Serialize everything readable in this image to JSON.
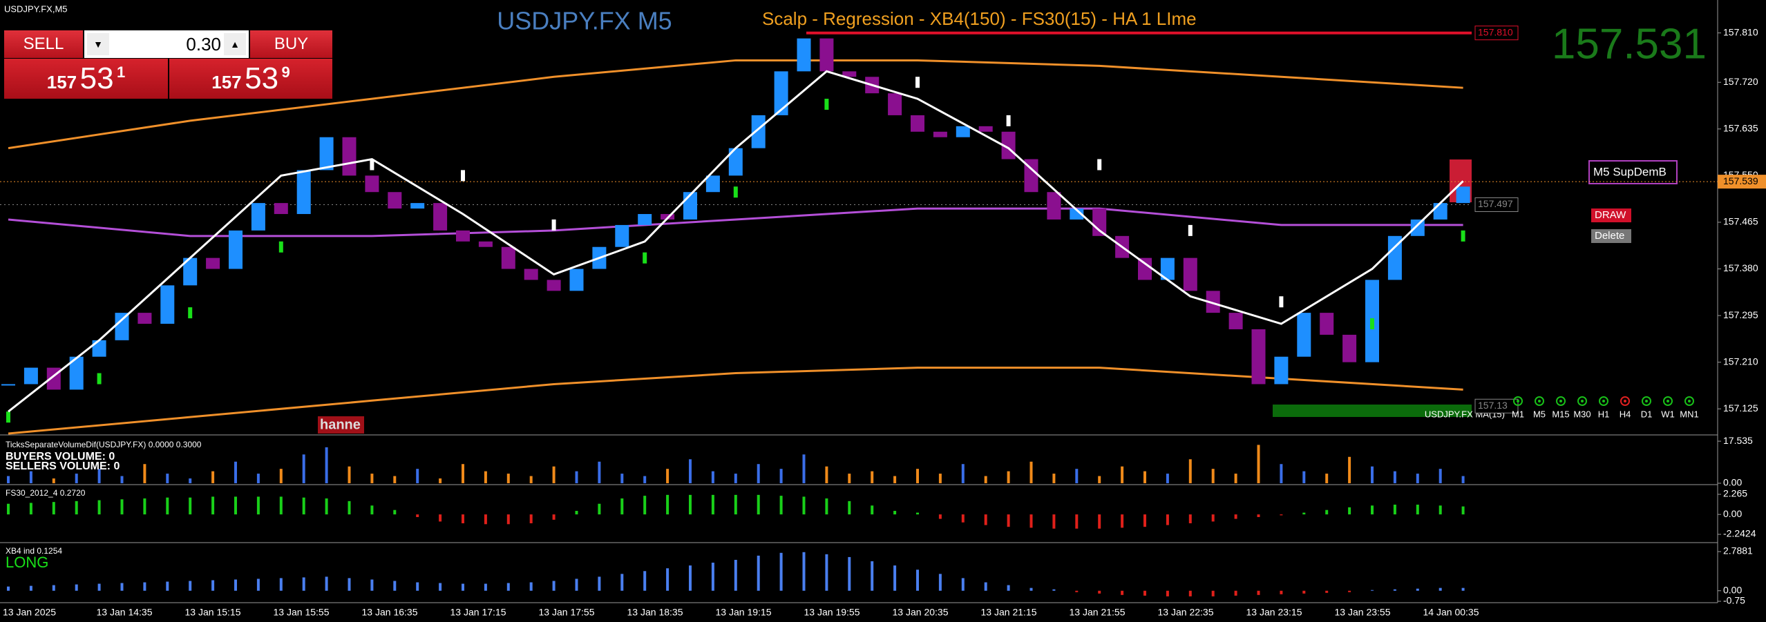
{
  "window": {
    "symbol": "USDJPY.FX,M5"
  },
  "trade_panel": {
    "sell": "SELL",
    "buy": "BUY",
    "lot": "0.30",
    "sell_price": {
      "big": "157",
      "main": "53",
      "small": "1"
    },
    "buy_price": {
      "big": "157",
      "main": "53",
      "small": "9"
    }
  },
  "chart_data": {
    "type": "candlestick",
    "title": "USDJPY.FX M5",
    "subtitle": "Scalp - Regression - XB4(150) - FS30(15) - HA  1 LIme",
    "bid_display": "157.531",
    "time_labels": [
      "13 Jan 2025",
      "13 Jan 14:35",
      "13 Jan 15:15",
      "13 Jan 15:55",
      "13 Jan 16:35",
      "13 Jan 17:15",
      "13 Jan 17:55",
      "13 Jan 18:35",
      "13 Jan 19:15",
      "13 Jan 19:55",
      "13 Jan 20:35",
      "13 Jan 21:15",
      "13 Jan 21:55",
      "13 Jan 22:35",
      "13 Jan 23:15",
      "13 Jan 23:55",
      "14 Jan 00:35"
    ],
    "closes": [
      157.17,
      157.2,
      157.16,
      157.22,
      157.25,
      157.3,
      157.28,
      157.35,
      157.4,
      157.38,
      157.45,
      157.5,
      157.48,
      157.56,
      157.62,
      157.55,
      157.52,
      157.49,
      157.5,
      157.45,
      157.43,
      157.42,
      157.38,
      157.36,
      157.34,
      157.38,
      157.42,
      157.46,
      157.48,
      157.47,
      157.52,
      157.55,
      157.6,
      157.66,
      157.74,
      157.8,
      157.74,
      157.73,
      157.7,
      157.66,
      157.63,
      157.62,
      157.64,
      157.63,
      157.58,
      157.52,
      157.47,
      157.49,
      157.44,
      157.4,
      157.36,
      157.4,
      157.34,
      157.3,
      157.27,
      157.17,
      157.22,
      157.3,
      157.26,
      157.21,
      157.36,
      157.44,
      157.47,
      157.5,
      157.53
    ],
    "up_color": "#1e8fff",
    "down_color": "#8a0f8f",
    "regression": {
      "color": "#ffffff",
      "values": [
        157.12,
        157.25,
        157.4,
        157.55,
        157.58,
        157.48,
        157.37,
        157.43,
        157.6,
        157.74,
        157.69,
        157.6,
        157.45,
        157.33,
        157.28,
        157.38,
        157.54
      ]
    },
    "upper_band": {
      "color": "#f0902a",
      "values": [
        157.6,
        157.65,
        157.69,
        157.73,
        157.76,
        157.76,
        157.75,
        157.73,
        157.71
      ]
    },
    "lower_band": {
      "color": "#f0902a",
      "values": [
        157.08,
        157.11,
        157.14,
        157.17,
        157.19,
        157.2,
        157.2,
        157.18,
        157.16
      ]
    },
    "ma": {
      "color": "#b44fd8",
      "values": [
        157.47,
        157.44,
        157.44,
        157.45,
        157.47,
        157.49,
        157.49,
        157.46,
        157.46
      ]
    },
    "ha": {
      "color": "#19e019",
      "values": [
        157.11,
        157.18,
        157.3,
        157.42,
        157.57,
        157.55,
        157.46,
        157.4,
        157.52,
        157.68,
        157.72,
        157.65,
        157.57,
        157.45,
        157.32,
        157.28,
        157.44
      ]
    },
    "ylim": [
      157.08,
      157.87
    ],
    "yticks": [
      157.125,
      {
        "value": 157.21,
        "label": "157.210"
      },
      157.295,
      {
        "value": 157.38,
        "label": "157.380"
      },
      157.465,
      {
        "value": 157.55,
        "label": "157.550"
      },
      157.635,
      {
        "value": 157.72,
        "label": "157.720"
      },
      {
        "value": 157.81,
        "label": "157.810"
      }
    ],
    "levels": [
      {
        "value": 157.81,
        "label": "157.810",
        "color": "#e0102a"
      },
      {
        "value": 157.497,
        "label": "157.497",
        "color": "#888888"
      },
      {
        "value": 157.13,
        "label": "157.13",
        "color": "#888888"
      }
    ],
    "current_price": {
      "value": 157.539,
      "label": "157.539",
      "color": "#f0902a"
    },
    "indicator_label": "USDJPY.FX MA(15)",
    "timeframes": [
      "M1",
      "M5",
      "M15",
      "M30",
      "H1",
      "H4",
      "D1",
      "W1",
      "MN1"
    ],
    "tags": {
      "zone": "M5 SupDemB",
      "draw": "DRAW",
      "delete": "Delete",
      "hanne": "hanne"
    }
  },
  "panels": [
    {
      "type": "bar",
      "title": "TicksSeparateVolumeDif(USDJPY.FX) 0.0000 0.3000",
      "notes": [
        "BUYERS VOLUME: 0",
        "SELLERS VOLUME: 0"
      ],
      "values": [
        3,
        5,
        2,
        4,
        6,
        3,
        8,
        4,
        2,
        5,
        9,
        4,
        6,
        12,
        15,
        7,
        4,
        3,
        6,
        2,
        8,
        5,
        4,
        3,
        7,
        5,
        9,
        4,
        3,
        6,
        10,
        5,
        4,
        8,
        6,
        12,
        7,
        4,
        5,
        3,
        6,
        4,
        8,
        3,
        5,
        9,
        4,
        6,
        3,
        7,
        5,
        4,
        10,
        6,
        4,
        16,
        8,
        5,
        4,
        11,
        7,
        5,
        4,
        6,
        3
      ],
      "up_color": "#3a6ee8",
      "down_color": "#f08a1a",
      "ylim": [
        0,
        19
      ],
      "yticks": [
        17.535,
        {
          "value": 0,
          "label": "0.00"
        }
      ]
    },
    {
      "type": "bar",
      "title": "FS30_2012_4 0.2720",
      "notes": [],
      "values": [
        1.2,
        1.3,
        1.4,
        1.5,
        1.6,
        1.7,
        1.8,
        1.9,
        1.9,
        2.0,
        2.0,
        2.0,
        2.0,
        1.9,
        1.8,
        1.5,
        1.0,
        0.5,
        -0.3,
        -0.8,
        -1.0,
        -1.1,
        -1.1,
        -1.0,
        -0.6,
        0.4,
        1.2,
        1.8,
        2.1,
        2.2,
        2.2,
        2.2,
        2.2,
        2.2,
        2.1,
        2.0,
        1.8,
        1.5,
        1.0,
        0.4,
        0.2,
        -0.5,
        -0.9,
        -1.2,
        -1.4,
        -1.5,
        -1.6,
        -1.6,
        -1.6,
        -1.5,
        -1.4,
        -1.2,
        -1.0,
        -0.8,
        -0.5,
        -0.3,
        -0.1,
        0.2,
        0.5,
        0.8,
        1.0,
        1.1,
        1.1,
        1.0,
        0.9
      ],
      "pos_color": "#19d019",
      "neg_color": "#e0201a",
      "ylim": [
        -3.02,
        3.2
      ],
      "yticks": [
        2.265,
        {
          "value": 0,
          "label": "0.00"
        },
        -2.2424
      ]
    },
    {
      "type": "bar",
      "title": "XB4 ind 0.1254",
      "notes": [
        "LONG"
      ],
      "values": [
        0.3,
        0.35,
        0.4,
        0.45,
        0.5,
        0.55,
        0.6,
        0.65,
        0.7,
        0.75,
        0.8,
        0.85,
        0.9,
        0.95,
        1.0,
        0.9,
        0.8,
        0.7,
        0.6,
        0.55,
        0.5,
        0.5,
        0.55,
        0.6,
        0.7,
        0.85,
        1.0,
        1.2,
        1.4,
        1.6,
        1.8,
        2.0,
        2.2,
        2.5,
        2.7,
        2.75,
        2.6,
        2.4,
        2.1,
        1.8,
        1.5,
        1.2,
        0.9,
        0.6,
        0.4,
        0.2,
        0.1,
        -0.1,
        -0.2,
        -0.3,
        -0.35,
        -0.4,
        -0.4,
        -0.4,
        -0.35,
        -0.3,
        -0.25,
        -0.2,
        -0.15,
        -0.1,
        0.05,
        0.1,
        0.15,
        0.2,
        0.2
      ],
      "pos_color": "#4a7ff0",
      "neg_color": "#e0201a",
      "ylim": [
        -0.8,
        3.33
      ],
      "yticks": [
        2.7881,
        {
          "value": 0,
          "label": "0.00"
        },
        -0.75
      ]
    }
  ]
}
